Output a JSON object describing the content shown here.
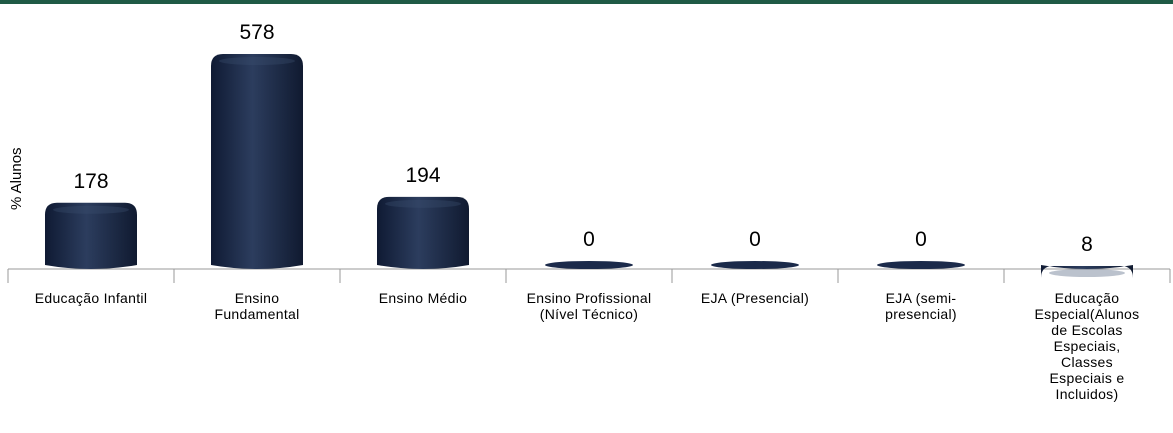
{
  "colors": {
    "bar": "#1b2a4a",
    "bar_highlight": "#3c5070",
    "top_bar": "#1f5a45",
    "axis": "#9a9a9a"
  },
  "chart_data": {
    "type": "bar",
    "title": "",
    "xlabel": "",
    "ylabel": "% Alunos",
    "categories": [
      "Educação Infantil",
      "Ensino Fundamental",
      "Ensino Médio",
      "Ensino Profissional (Nível Técnico)",
      "EJA (Presencial)",
      "EJA (semi-presencial)",
      "Educação Especial(Alunos de Escolas Especiais, Classes Especiais e Incluidos)"
    ],
    "values": [
      178,
      578,
      194,
      0,
      0,
      0,
      8
    ],
    "data_labels": [
      "178",
      "578",
      "194",
      "0",
      "0",
      "0",
      "8"
    ],
    "ylim": [
      0,
      578
    ],
    "grid": false,
    "legend": "none"
  }
}
